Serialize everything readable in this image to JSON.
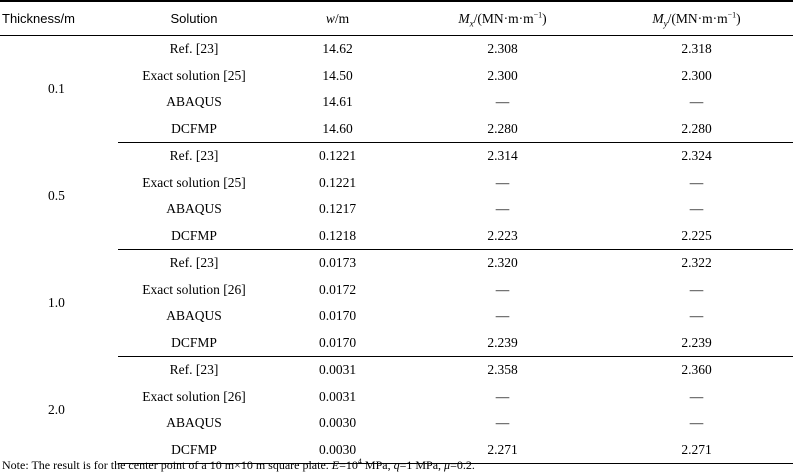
{
  "headers": {
    "thickness": "Thickness/m",
    "solution": "Solution",
    "w_var": "w",
    "w_unit": "/m",
    "mx_var": "M",
    "mx_sub": "x",
    "mx_unit": "/(MN·m·m",
    "mx_exp": "−1",
    "mx_close": ")",
    "my_var": "M",
    "my_sub": "y",
    "my_unit": "/(MN·m·m",
    "my_exp": "−1",
    "my_close": ")"
  },
  "groups": [
    {
      "thickness": "0.1",
      "rows": [
        {
          "solution": "Ref. [23]",
          "w": "14.62",
          "mx": "2.308",
          "my": "2.318"
        },
        {
          "solution": "Exact solution [25]",
          "w": "14.50",
          "mx": "2.300",
          "my": "2.300"
        },
        {
          "solution": "ABAQUS",
          "w": "14.61",
          "mx": "—",
          "my": "—"
        },
        {
          "solution": "DCFMP",
          "w": "14.60",
          "mx": "2.280",
          "my": "2.280"
        }
      ]
    },
    {
      "thickness": "0.5",
      "rows": [
        {
          "solution": "Ref. [23]",
          "w": "0.1221",
          "mx": "2.314",
          "my": "2.324"
        },
        {
          "solution": "Exact solution [25]",
          "w": "0.1221",
          "mx": "—",
          "my": "—"
        },
        {
          "solution": "ABAQUS",
          "w": "0.1217",
          "mx": "—",
          "my": "—"
        },
        {
          "solution": "DCFMP",
          "w": "0.1218",
          "mx": "2.223",
          "my": "2.225"
        }
      ]
    },
    {
      "thickness": "1.0",
      "rows": [
        {
          "solution": "Ref. [23]",
          "w": "0.0173",
          "mx": "2.320",
          "my": "2.322"
        },
        {
          "solution": "Exact solution [26]",
          "w": "0.0172",
          "mx": "—",
          "my": "—"
        },
        {
          "solution": "ABAQUS",
          "w": "0.0170",
          "mx": "—",
          "my": "—"
        },
        {
          "solution": "DCFMP",
          "w": "0.0170",
          "mx": "2.239",
          "my": "2.239"
        }
      ]
    },
    {
      "thickness": "2.0",
      "rows": [
        {
          "solution": "Ref. [23]",
          "w": "0.0031",
          "mx": "2.358",
          "my": "2.360"
        },
        {
          "solution": "Exact solution [26]",
          "w": "0.0031",
          "mx": "—",
          "my": "—"
        },
        {
          "solution": "ABAQUS",
          "w": "0.0030",
          "mx": "—",
          "my": "—"
        },
        {
          "solution": "DCFMP",
          "w": "0.0030",
          "mx": "2.271",
          "my": "2.271"
        }
      ]
    }
  ],
  "note": {
    "prefix": "Note: The result is for the center point of a 10 m×10 m square plate. ",
    "e_var": "E",
    "e_eq": "=10",
    "e_exp": "4",
    "e_unit": " MPa, ",
    "q_var": "q",
    "q_eq": "=1 MPa, ",
    "mu_var": "μ",
    "mu_eq": "=0.2."
  }
}
